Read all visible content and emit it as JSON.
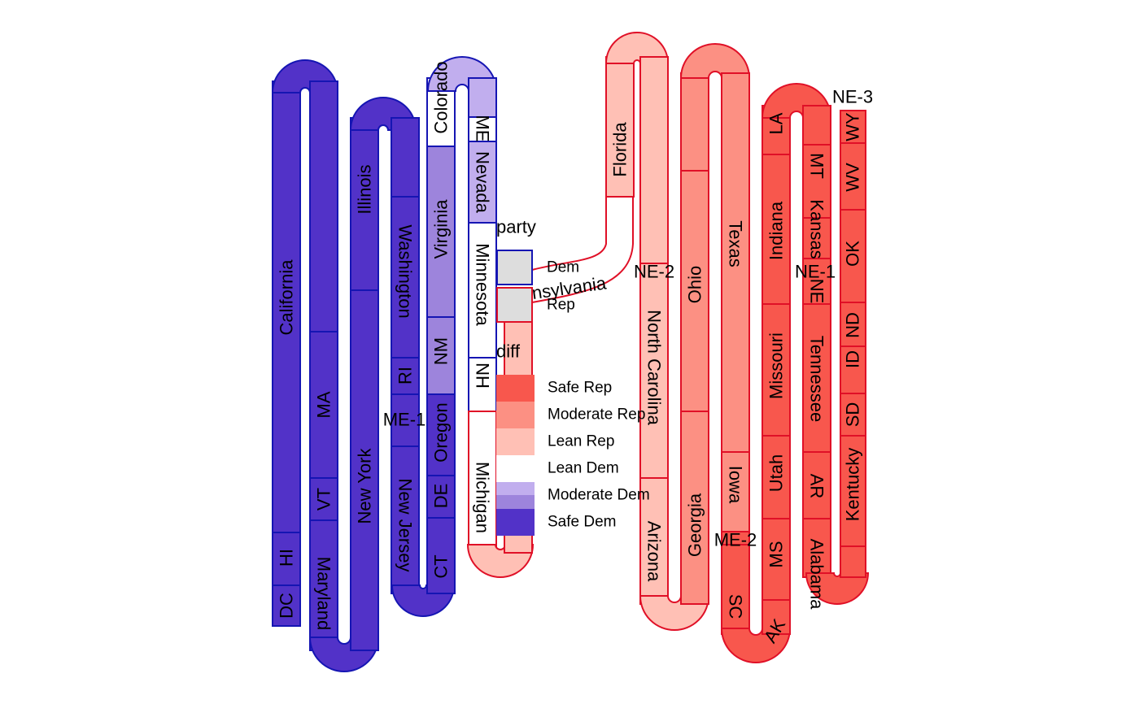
{
  "chart_data": {
    "type": "other",
    "description_note": "",
    "colors": {
      "Safe Rep": "#f8574d",
      "Moderate Rep": "#fc9083",
      "Lean Rep": "#ffc0b5",
      "Lean Dem": "#ffffff",
      "Moderate Dem": "#9d84dc",
      "Safe Dem": "#5232c8",
      "Lean Dem fill": "#c1aeee",
      "Dem": "#1515b3",
      "Rep": "#e01027"
    },
    "legend": {
      "party_title": "party",
      "party": [
        "Dem",
        "Rep"
      ],
      "diff_title": "diff",
      "diff": [
        "Safe Rep",
        "Moderate Rep",
        "Lean Rep",
        "Lean Dem",
        "Moderate Dem",
        "Safe Dem"
      ]
    },
    "series": [
      {
        "party": "Dem",
        "states": [
          {
            "label": "DC",
            "rating": "Safe Dem"
          },
          {
            "label": "HI",
            "rating": "Safe Dem"
          },
          {
            "label": "California",
            "rating": "Safe Dem"
          },
          {
            "label": "Maryland",
            "rating": "Safe Dem"
          },
          {
            "label": "VT",
            "rating": "Safe Dem"
          },
          {
            "label": "MA",
            "rating": "Safe Dem"
          },
          {
            "label": "New York",
            "rating": "Safe Dem"
          },
          {
            "label": "Illinois",
            "rating": "Safe Dem"
          },
          {
            "label": "New Jersey",
            "rating": "Safe Dem"
          },
          {
            "label": "ME-1",
            "rating": "Safe Dem"
          },
          {
            "label": "RI",
            "rating": "Safe Dem"
          },
          {
            "label": "Washington",
            "rating": "Safe Dem"
          },
          {
            "label": "CT",
            "rating": "Safe Dem"
          },
          {
            "label": "DE",
            "rating": "Safe Dem"
          },
          {
            "label": "Oregon",
            "rating": "Safe Dem"
          },
          {
            "label": "NM",
            "rating": "Moderate Dem"
          },
          {
            "label": "Virginia",
            "rating": "Moderate Dem"
          },
          {
            "label": "Colorado",
            "rating": "Lean Dem"
          },
          {
            "label": "ME",
            "rating": "Lean Dem"
          },
          {
            "label": "Nevada",
            "rating": "Lean Dem"
          },
          {
            "label": "Minnesota",
            "rating": "Lean Dem"
          },
          {
            "label": "NH",
            "rating": "Lean Dem"
          },
          {
            "label": "Michigan",
            "rating": "Lean Dem"
          }
        ]
      },
      {
        "party": "Rep",
        "states": [
          {
            "label": "Pennsylvania",
            "rating": "Lean Rep"
          },
          {
            "label": "Florida",
            "rating": "Lean Rep"
          },
          {
            "label": "NE-2",
            "rating": "Lean Rep"
          },
          {
            "label": "Arizona",
            "rating": "Lean Rep"
          },
          {
            "label": "North Carolina",
            "rating": "Lean Rep"
          },
          {
            "label": "Georgia",
            "rating": "Moderate Rep"
          },
          {
            "label": "Ohio",
            "rating": "Moderate Rep"
          },
          {
            "label": "Texas",
            "rating": "Moderate Rep"
          },
          {
            "label": "Iowa",
            "rating": "Moderate Rep"
          },
          {
            "label": "ME-2",
            "rating": "Safe Rep"
          },
          {
            "label": "SC",
            "rating": "Safe Rep"
          },
          {
            "label": "AK",
            "rating": "Safe Rep"
          },
          {
            "label": "MS",
            "rating": "Safe Rep"
          },
          {
            "label": "Utah",
            "rating": "Safe Rep"
          },
          {
            "label": "Missouri",
            "rating": "Safe Rep"
          },
          {
            "label": "Indiana",
            "rating": "Safe Rep"
          },
          {
            "label": "LA",
            "rating": "Safe Rep"
          },
          {
            "label": "MT",
            "rating": "Safe Rep"
          },
          {
            "label": "Kansas",
            "rating": "Safe Rep"
          },
          {
            "label": "NE-1",
            "rating": "Safe Rep"
          },
          {
            "label": "NE",
            "rating": "Safe Rep"
          },
          {
            "label": "Tennessee",
            "rating": "Safe Rep"
          },
          {
            "label": "AR",
            "rating": "Safe Rep"
          },
          {
            "label": "Alabama",
            "rating": "Safe Rep"
          },
          {
            "label": "Kentucky",
            "rating": "Safe Rep"
          },
          {
            "label": "SD",
            "rating": "Safe Rep"
          },
          {
            "label": "ID",
            "rating": "Safe Rep"
          },
          {
            "label": "ND",
            "rating": "Safe Rep"
          },
          {
            "label": "OK",
            "rating": "Safe Rep"
          },
          {
            "label": "WV",
            "rating": "Safe Rep"
          },
          {
            "label": "WY",
            "rating": "Safe Rep"
          },
          {
            "label": "NE-3",
            "rating": "Safe Rep"
          }
        ]
      }
    ]
  }
}
